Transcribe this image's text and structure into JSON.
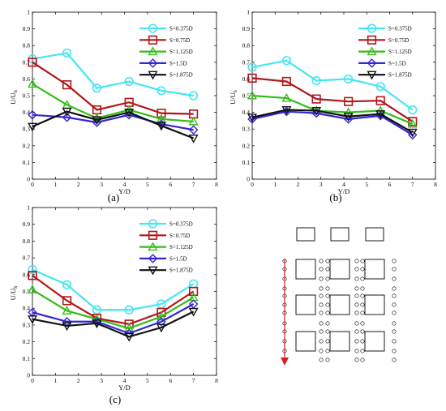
{
  "colors": {
    "S=0.375D": "#45e6f2",
    "S=0.75D": "#b0161a",
    "S=1.125D": "#33bd16",
    "S=1.5D": "#3326d4",
    "S=1.875D": "#111111"
  },
  "chart_data": [
    {
      "type": "line",
      "caption": "(a)",
      "xlabel": "Y/D",
      "ylabel": "U/U",
      "ylabel_sub": "h",
      "xlim": [
        0,
        8
      ],
      "ylim": [
        0,
        1
      ],
      "xticks": [
        "0",
        "1",
        "2",
        "3",
        "4",
        "5",
        "6",
        "7",
        "8"
      ],
      "yticks": [
        "0",
        "0.1",
        "0.2",
        "0.3",
        "0.4",
        "0.5",
        "0.6",
        "0.7",
        "0.8",
        "0.9",
        "1"
      ],
      "x": [
        0,
        1.5,
        2.8,
        4.2,
        5.6,
        7
      ],
      "legend_position": "top-right",
      "series": [
        {
          "name": "S=0.375D",
          "marker": "circle",
          "values": [
            0.72,
            0.755,
            0.545,
            0.585,
            0.53,
            0.5
          ]
        },
        {
          "name": "S=0.75D",
          "marker": "square",
          "values": [
            0.7,
            0.565,
            0.415,
            0.46,
            0.395,
            0.39
          ]
        },
        {
          "name": "S=1.125D",
          "marker": "triangle-up",
          "values": [
            0.57,
            0.445,
            0.365,
            0.415,
            0.36,
            0.345
          ]
        },
        {
          "name": "S=1.5D",
          "marker": "diamond",
          "values": [
            0.385,
            0.37,
            0.34,
            0.385,
            0.33,
            0.295
          ]
        },
        {
          "name": "S=1.875D",
          "marker": "triangle-down",
          "values": [
            0.315,
            0.405,
            0.355,
            0.4,
            0.32,
            0.245
          ]
        }
      ]
    },
    {
      "type": "line",
      "caption": "(b)",
      "xlabel": "Y/D",
      "ylabel": "U/U",
      "ylabel_sub": "h",
      "xlim": [
        0,
        8
      ],
      "ylim": [
        0,
        1
      ],
      "xticks": [
        "0",
        "1",
        "2",
        "3",
        "4",
        "5",
        "6",
        "7",
        "8"
      ],
      "yticks": [
        "0",
        "0.1",
        "0.2",
        "0.3",
        "0.4",
        "0.5",
        "0.6",
        "0.7",
        "0.8",
        "0.9",
        "1"
      ],
      "x": [
        0,
        1.5,
        2.8,
        4.2,
        5.6,
        7
      ],
      "legend_position": "top-right",
      "series": [
        {
          "name": "S=0.375D",
          "marker": "circle",
          "values": [
            0.67,
            0.71,
            0.59,
            0.6,
            0.555,
            0.415
          ]
        },
        {
          "name": "S=0.75D",
          "marker": "square",
          "values": [
            0.605,
            0.585,
            0.48,
            0.465,
            0.47,
            0.345
          ]
        },
        {
          "name": "S=1.125D",
          "marker": "triangle-up",
          "values": [
            0.5,
            0.485,
            0.41,
            0.4,
            0.41,
            0.33
          ]
        },
        {
          "name": "S=1.5D",
          "marker": "diamond",
          "values": [
            0.36,
            0.405,
            0.395,
            0.36,
            0.38,
            0.265
          ]
        },
        {
          "name": "S=1.875D",
          "marker": "triangle-down",
          "values": [
            0.37,
            0.415,
            0.41,
            0.375,
            0.39,
            0.28
          ]
        }
      ]
    },
    {
      "type": "line",
      "caption": "(c)",
      "xlabel": "Y/D",
      "ylabel": "U/U",
      "ylabel_sub": "h",
      "xlim": [
        0,
        8
      ],
      "ylim": [
        0,
        1
      ],
      "xticks": [
        "0",
        "1",
        "2",
        "3",
        "4",
        "5",
        "6",
        "7",
        "8"
      ],
      "yticks": [
        "0",
        "0.1",
        "0.2",
        "0.3",
        "0.4",
        "0.5",
        "0.6",
        "0.7",
        "0.8",
        "0.9",
        "1"
      ],
      "x": [
        0,
        1.5,
        2.8,
        4.2,
        5.6,
        7
      ],
      "legend_position": "top-right",
      "series": [
        {
          "name": "S=0.375D",
          "marker": "circle",
          "values": [
            0.63,
            0.54,
            0.39,
            0.39,
            0.425,
            0.545
          ]
        },
        {
          "name": "S=0.75D",
          "marker": "square",
          "values": [
            0.595,
            0.445,
            0.34,
            0.305,
            0.375,
            0.5
          ]
        },
        {
          "name": "S=1.125D",
          "marker": "triangle-up",
          "values": [
            0.51,
            0.385,
            0.335,
            0.28,
            0.35,
            0.465
          ]
        },
        {
          "name": "S=1.5D",
          "marker": "diamond",
          "values": [
            0.375,
            0.32,
            0.32,
            0.25,
            0.32,
            0.425
          ]
        },
        {
          "name": "S=1.875D",
          "marker": "triangle-down",
          "values": [
            0.335,
            0.295,
            0.31,
            0.23,
            0.285,
            0.38
          ]
        }
      ]
    }
  ],
  "schematic": {
    "description_free": true,
    "top_rects": 3,
    "grid_rows": 3,
    "grid_cols": 3,
    "arrow_color": "#d42020"
  }
}
